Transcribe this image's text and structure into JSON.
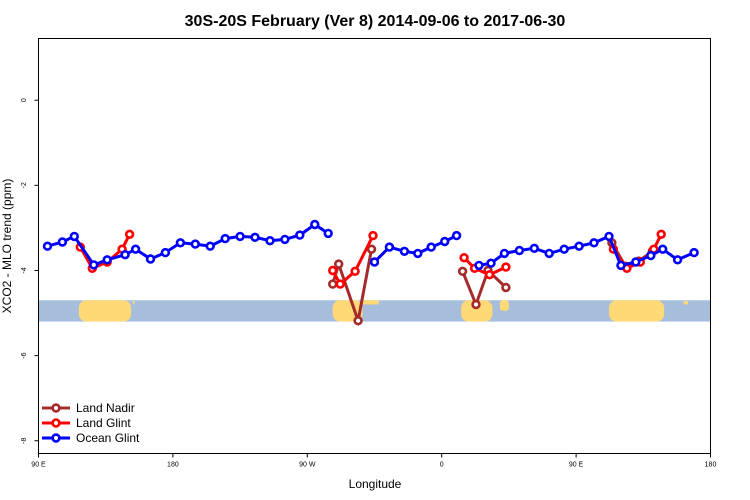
{
  "chart_data": {
    "type": "line",
    "title": "30S-20S February (Ver 8)   2014-09-06 to 2017-06-30",
    "xlabel": "Longitude",
    "ylabel": "XCO2 - MLO trend (ppm)",
    "xlim": [
      90,
      540
    ],
    "ylim": [
      -8.3,
      1.45
    ],
    "x_ticks": [
      {
        "value": 90,
        "label": "90 E"
      },
      {
        "value": 180,
        "label": "180"
      },
      {
        "value": 270,
        "label": "90 W"
      },
      {
        "value": 360,
        "label": "0"
      },
      {
        "value": 450,
        "label": "90 E"
      },
      {
        "value": 540,
        "label": "180"
      }
    ],
    "y_ticks": [
      {
        "value": 0,
        "label": "0"
      },
      {
        "value": -2,
        "label": "-2"
      },
      {
        "value": -4,
        "label": "-4"
      },
      {
        "value": -6,
        "label": "-6"
      },
      {
        "value": -8,
        "label": "-8"
      }
    ],
    "legend_position": "bottom-left",
    "map_strip": {
      "y_range": [
        -4.7,
        -5.2
      ],
      "ocean_color": "#a6bddb",
      "land_color": "#fed976",
      "land_segments": [
        {
          "x0": 117,
          "x1": 152,
          "y_top": -4.7,
          "y_bottom": -5.2
        },
        {
          "x0": 153,
          "x1": 154.5,
          "y_top": -4.72,
          "y_bottom": -4.78
        },
        {
          "x0": 287,
          "x1": 307,
          "y_top": -4.7,
          "y_bottom": -5.2
        },
        {
          "x0": 307,
          "x1": 318,
          "y_top": -4.7,
          "y_bottom": -4.8
        },
        {
          "x0": 373,
          "x1": 394,
          "y_top": -4.7,
          "y_bottom": -5.2
        },
        {
          "x0": 399,
          "x1": 405,
          "y_top": -4.7,
          "y_bottom": -4.95
        },
        {
          "x0": 472,
          "x1": 509,
          "y_top": -4.7,
          "y_bottom": -5.2
        },
        {
          "x0": 522,
          "x1": 525,
          "y_top": -4.72,
          "y_bottom": -4.8
        }
      ]
    },
    "series": [
      {
        "name": "Land Nadir",
        "color": "#a52a2a",
        "segments": [
          [
            {
              "x": 287,
              "y": -4.32
            },
            {
              "x": 291,
              "y": -3.85
            },
            {
              "x": 304,
              "y": -5.18
            },
            {
              "x": 313,
              "y": -3.5
            }
          ],
          [
            {
              "x": 374,
              "y": -4.02
            },
            {
              "x": 383,
              "y": -4.8
            },
            {
              "x": 391,
              "y": -4.0
            },
            {
              "x": 403,
              "y": -4.4
            }
          ],
          [
            {
              "x": 474,
              "y": -3.35
            },
            {
              "x": 483,
              "y": -3.9
            },
            {
              "x": 492,
              "y": -3.78
            },
            {
              "x": 501,
              "y": -3.55
            }
          ]
        ]
      },
      {
        "name": "Land Glint",
        "color": "#ff0000",
        "segments": [
          [
            {
              "x": 118,
              "y": -3.45
            },
            {
              "x": 126,
              "y": -3.95
            },
            {
              "x": 136,
              "y": -3.8
            },
            {
              "x": 146,
              "y": -3.5
            },
            {
              "x": 151,
              "y": -3.15
            }
          ],
          [
            {
              "x": 287,
              "y": -4.0
            },
            {
              "x": 292,
              "y": -4.32
            },
            {
              "x": 302,
              "y": -4.02
            },
            {
              "x": 314,
              "y": -3.18
            }
          ],
          [
            {
              "x": 375,
              "y": -3.7
            },
            {
              "x": 382,
              "y": -3.95
            },
            {
              "x": 392,
              "y": -4.1
            },
            {
              "x": 403,
              "y": -3.92
            }
          ],
          [
            {
              "x": 475,
              "y": -3.5
            },
            {
              "x": 484,
              "y": -3.95
            },
            {
              "x": 493,
              "y": -3.8
            },
            {
              "x": 502,
              "y": -3.5
            },
            {
              "x": 507,
              "y": -3.15
            }
          ]
        ]
      },
      {
        "name": "Ocean Glint",
        "color": "#0000ff",
        "segments": [
          [
            {
              "x": 96,
              "y": -3.43
            },
            {
              "x": 106,
              "y": -3.33
            },
            {
              "x": 114,
              "y": -3.2
            },
            {
              "x": 127,
              "y": -3.87
            },
            {
              "x": 136,
              "y": -3.75
            },
            {
              "x": 148,
              "y": -3.63
            },
            {
              "x": 155,
              "y": -3.5
            },
            {
              "x": 165,
              "y": -3.73
            },
            {
              "x": 175,
              "y": -3.58
            },
            {
              "x": 185,
              "y": -3.35
            },
            {
              "x": 195,
              "y": -3.38
            },
            {
              "x": 205,
              "y": -3.43
            },
            {
              "x": 215,
              "y": -3.25
            },
            {
              "x": 225,
              "y": -3.2
            },
            {
              "x": 235,
              "y": -3.22
            },
            {
              "x": 245,
              "y": -3.3
            },
            {
              "x": 255,
              "y": -3.27
            },
            {
              "x": 265,
              "y": -3.17
            },
            {
              "x": 275,
              "y": -2.92
            },
            {
              "x": 284,
              "y": -3.13
            }
          ],
          [
            {
              "x": 315,
              "y": -3.8
            },
            {
              "x": 325,
              "y": -3.45
            },
            {
              "x": 335,
              "y": -3.55
            },
            {
              "x": 344,
              "y": -3.6
            },
            {
              "x": 353,
              "y": -3.45
            },
            {
              "x": 362,
              "y": -3.32
            },
            {
              "x": 370,
              "y": -3.18
            }
          ],
          [
            {
              "x": 385,
              "y": -3.88
            },
            {
              "x": 393,
              "y": -3.83
            },
            {
              "x": 402,
              "y": -3.6
            },
            {
              "x": 412,
              "y": -3.53
            },
            {
              "x": 422,
              "y": -3.48
            },
            {
              "x": 432,
              "y": -3.6
            },
            {
              "x": 442,
              "y": -3.5
            },
            {
              "x": 452,
              "y": -3.43
            },
            {
              "x": 462,
              "y": -3.35
            },
            {
              "x": 472,
              "y": -3.2
            },
            {
              "x": 480,
              "y": -3.88
            },
            {
              "x": 490,
              "y": -3.8
            },
            {
              "x": 500,
              "y": -3.65
            },
            {
              "x": 508,
              "y": -3.5
            },
            {
              "x": 518,
              "y": -3.75
            },
            {
              "x": 529,
              "y": -3.58
            }
          ]
        ]
      }
    ]
  }
}
